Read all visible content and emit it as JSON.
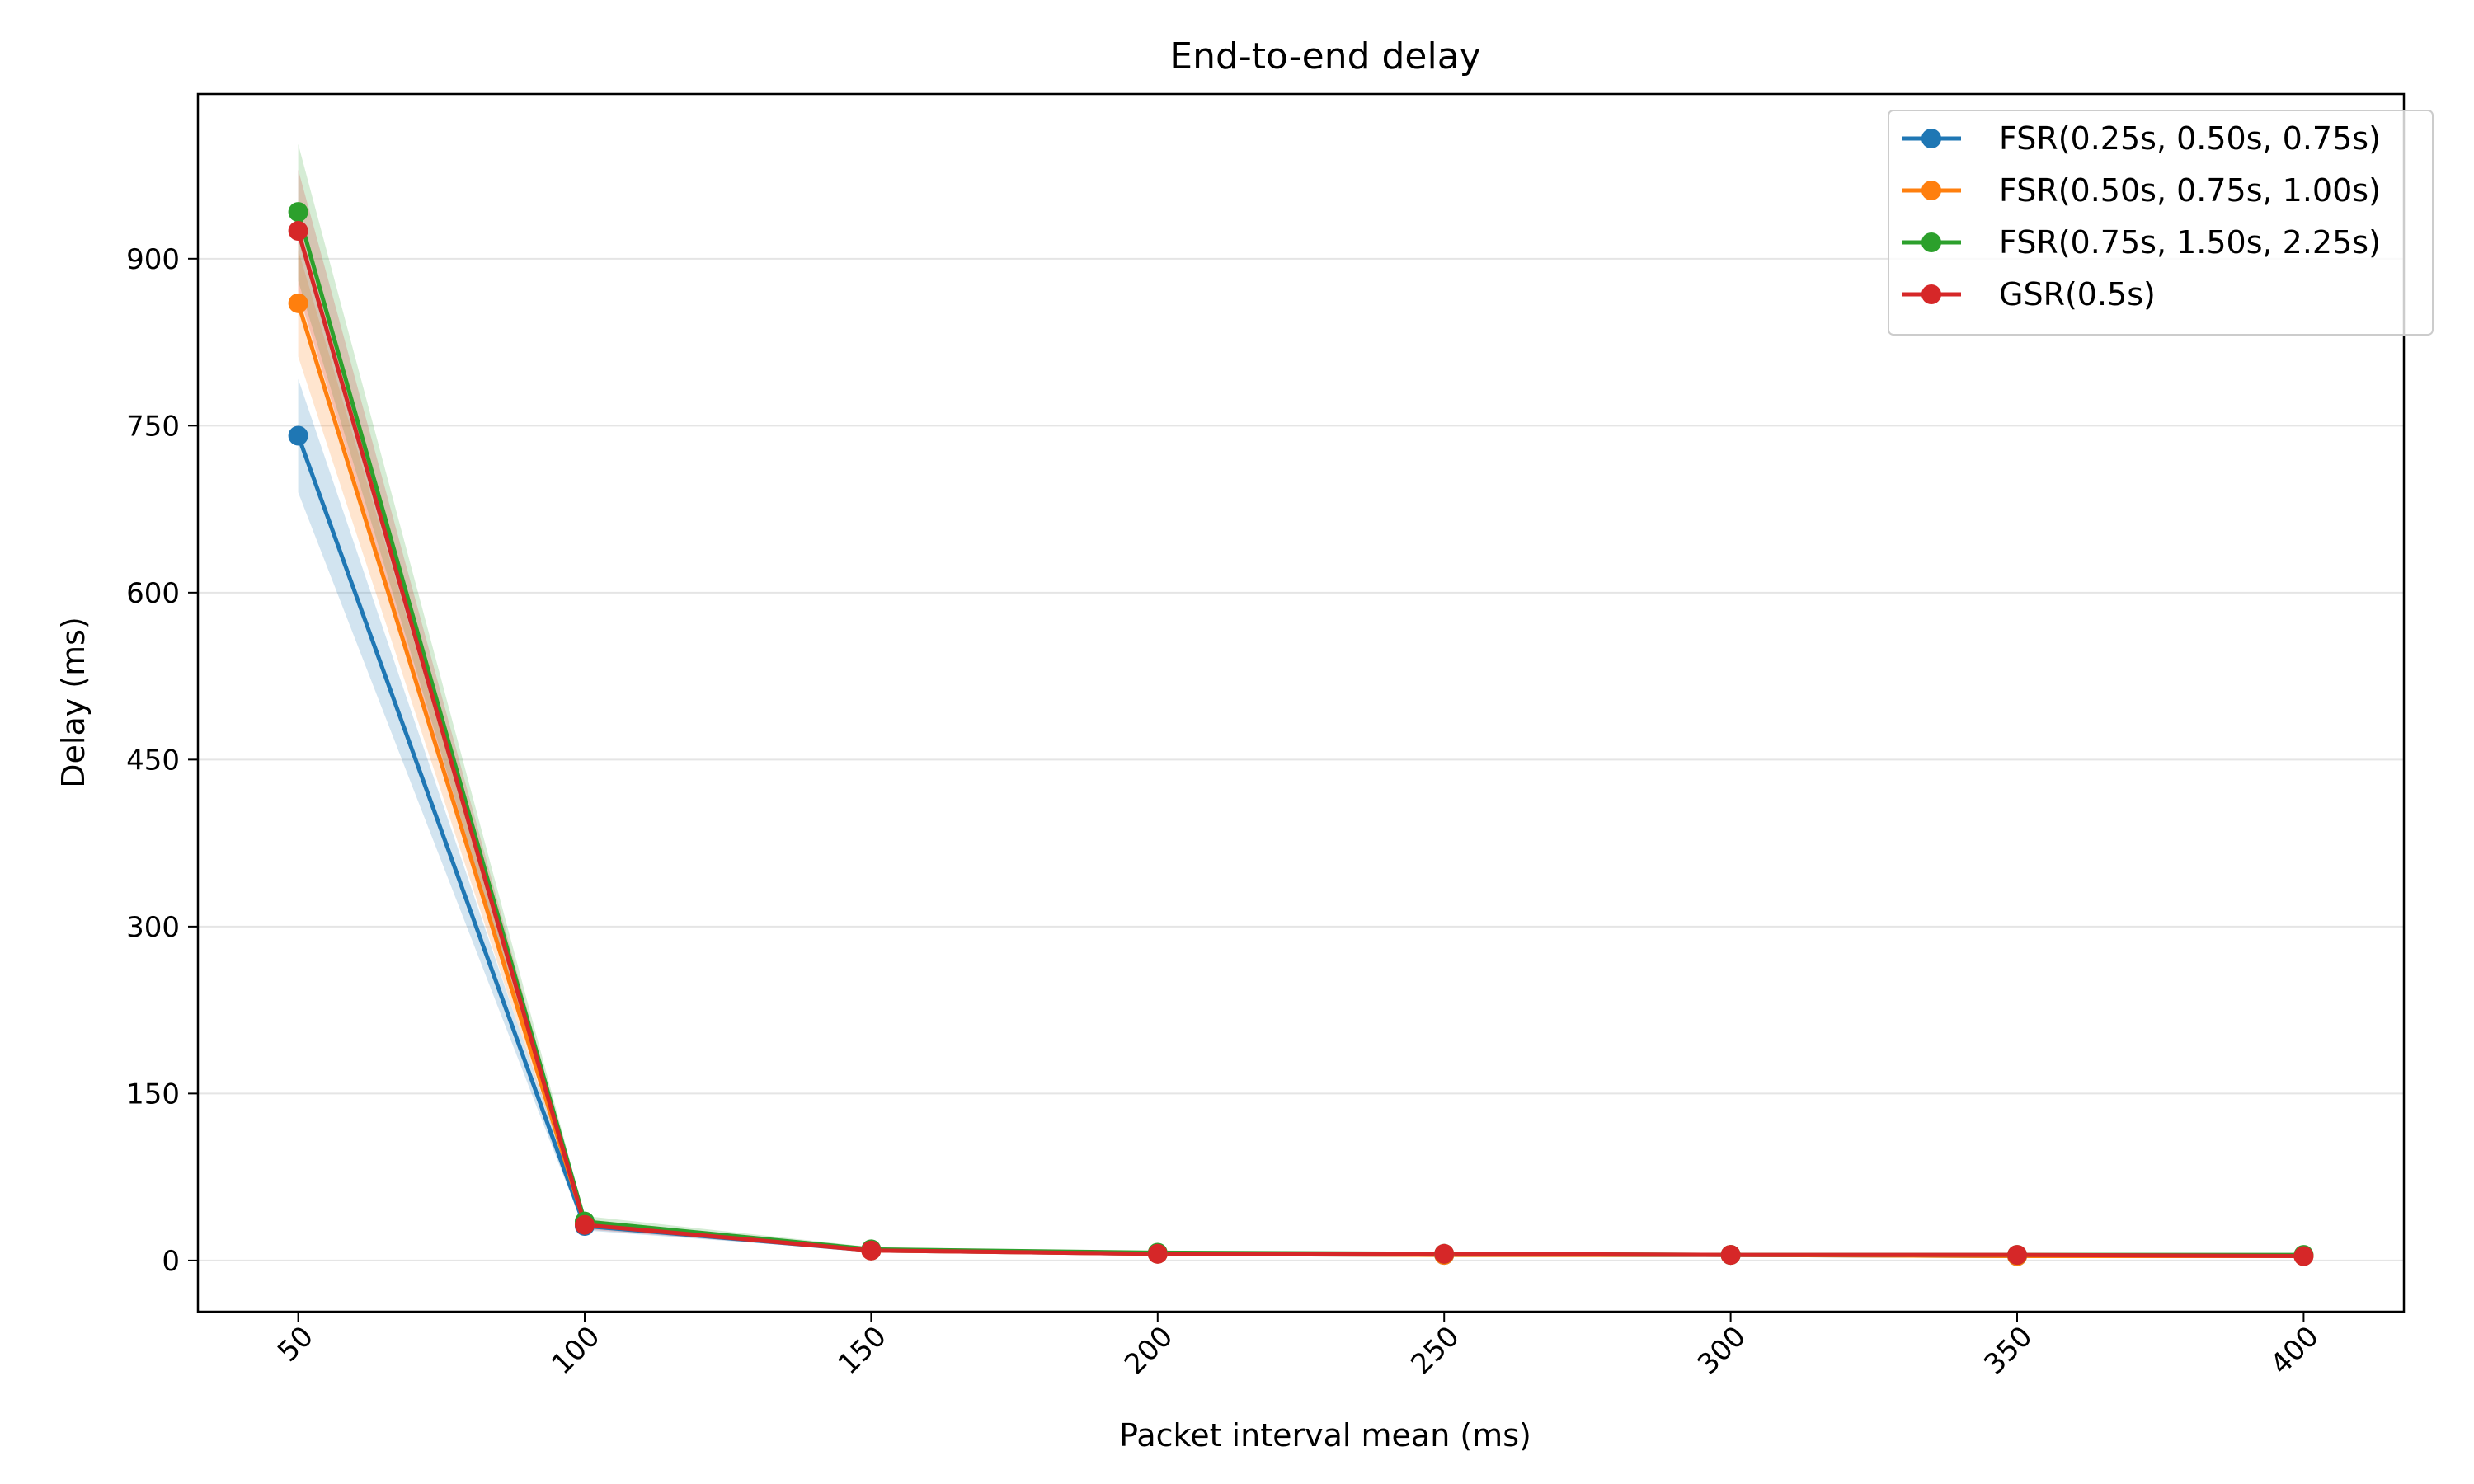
{
  "chart_data": {
    "type": "line",
    "title": "End-to-end delay",
    "xlabel": "Packet interval mean (ms)",
    "ylabel": "Delay (ms)",
    "x": [
      50,
      100,
      150,
      200,
      250,
      300,
      350,
      400
    ],
    "xticks": [
      50,
      100,
      150,
      200,
      250,
      300,
      350,
      400
    ],
    "yticks": [
      0,
      150,
      300,
      450,
      600,
      750,
      900
    ],
    "xlim": [
      32.5,
      417.5
    ],
    "ylim": [
      -46,
      1048
    ],
    "grid": "horizontal",
    "legend_position": "top-right",
    "series": [
      {
        "name": "FSR(0.25s, 0.50s, 0.75s)",
        "color": "#1f77b4",
        "values": [
          741,
          31,
          9,
          6,
          5,
          5,
          4,
          4
        ],
        "lower": [
          690,
          27,
          8,
          5,
          4,
          4,
          3,
          3
        ],
        "upper": [
          792,
          35,
          11,
          7,
          6,
          6,
          5,
          5
        ]
      },
      {
        "name": "FSR(0.50s, 0.75s, 1.00s)",
        "color": "#ff7f0e",
        "values": [
          860,
          33,
          9,
          6,
          5,
          5,
          4,
          4
        ],
        "lower": [
          812,
          29,
          8,
          5,
          4,
          4,
          3,
          3
        ],
        "upper": [
          908,
          37,
          11,
          7,
          6,
          6,
          5,
          5
        ]
      },
      {
        "name": "FSR(0.75s, 1.50s, 2.25s)",
        "color": "#2ca02c",
        "values": [
          942,
          35,
          10,
          7,
          6,
          5,
          5,
          5
        ],
        "lower": [
          880,
          30,
          8,
          6,
          5,
          4,
          4,
          4
        ],
        "upper": [
          1003,
          40,
          12,
          8,
          7,
          6,
          6,
          6
        ]
      },
      {
        "name": "GSR(0.5s)",
        "color": "#d62728",
        "values": [
          925,
          32,
          9,
          6,
          6,
          5,
          5,
          4
        ],
        "lower": [
          870,
          28,
          8,
          5,
          5,
          4,
          4,
          3
        ],
        "upper": [
          980,
          36,
          11,
          7,
          7,
          6,
          6,
          5
        ]
      }
    ]
  }
}
